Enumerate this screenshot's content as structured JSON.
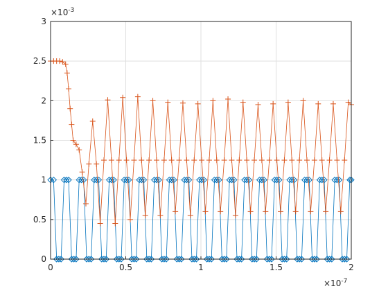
{
  "chart_data": {
    "type": "line",
    "x_multiplier": {
      "base": "×10",
      "exponent": "-7"
    },
    "y_multiplier": {
      "base": "×10",
      "exponent": "-3"
    },
    "xlim": [
      0,
      2
    ],
    "xticks": [
      0,
      0.5,
      1,
      1.5,
      2
    ],
    "ylim": [
      0,
      3
    ],
    "yticks": [
      0,
      0.5,
      1,
      1.5,
      2,
      2.5,
      3
    ],
    "grid": true,
    "series": [
      {
        "color": "#0072BD",
        "marker": "diamond",
        "x": [
          0,
          0.02,
          0.04,
          0.055,
          0.07,
          0.09,
          0.105,
          0.12,
          0.14,
          0.155,
          0.17,
          0.19,
          0.205,
          0.22,
          0.24,
          0.255,
          0.27,
          0.29,
          0.305,
          0.32,
          0.34,
          0.355,
          0.37,
          0.39,
          0.405,
          0.42,
          0.44,
          0.455,
          0.47,
          0.49,
          0.505,
          0.52,
          0.54,
          0.555,
          0.57,
          0.59,
          0.605,
          0.62,
          0.64,
          0.655,
          0.67,
          0.69,
          0.705,
          0.72,
          0.74,
          0.755,
          0.77,
          0.79,
          0.805,
          0.82,
          0.84,
          0.855,
          0.87,
          0.89,
          0.905,
          0.92,
          0.94,
          0.955,
          0.97,
          0.99,
          1.005,
          1.02,
          1.04,
          1.055,
          1.07,
          1.09,
          1.105,
          1.12,
          1.14,
          1.155,
          1.17,
          1.19,
          1.205,
          1.22,
          1.24,
          1.255,
          1.27,
          1.29,
          1.305,
          1.32,
          1.34,
          1.355,
          1.37,
          1.39,
          1.405,
          1.42,
          1.44,
          1.455,
          1.47,
          1.49,
          1.505,
          1.52,
          1.54,
          1.555,
          1.57,
          1.59,
          1.605,
          1.62,
          1.64,
          1.655,
          1.67,
          1.69,
          1.705,
          1.72,
          1.74,
          1.755,
          1.77,
          1.79,
          1.805,
          1.82,
          1.84,
          1.855,
          1.87,
          1.89,
          1.905,
          1.92,
          1.94,
          1.955,
          1.97,
          1.99,
          2.0
        ],
        "values": [
          1,
          1,
          0,
          0,
          0,
          1,
          1,
          1,
          0,
          0,
          0,
          1,
          1,
          1,
          0,
          0,
          0,
          1,
          1,
          1,
          0,
          0,
          0,
          1,
          1,
          1,
          0,
          0,
          0,
          1,
          1,
          1,
          0,
          0,
          0,
          1,
          1,
          1,
          0,
          0,
          0,
          1,
          1,
          1,
          0,
          0,
          0,
          1,
          1,
          1,
          0,
          0,
          0,
          1,
          1,
          1,
          0,
          0,
          0,
          1,
          1,
          1,
          0,
          0,
          0,
          1,
          1,
          1,
          0,
          0,
          0,
          1,
          1,
          1,
          0,
          0,
          0,
          1,
          1,
          1,
          0,
          0,
          0,
          1,
          1,
          1,
          0,
          0,
          0,
          1,
          1,
          1,
          0,
          0,
          0,
          1,
          1,
          1,
          0,
          0,
          0,
          1,
          1,
          1,
          0,
          0,
          0,
          1,
          1,
          1,
          0,
          0,
          0,
          1,
          1,
          1,
          0,
          0,
          0,
          1,
          1
        ]
      },
      {
        "color": "#D95319",
        "marker": "plus",
        "x": [
          0,
          0.02,
          0.04,
          0.06,
          0.08,
          0.1,
          0.11,
          0.12,
          0.13,
          0.14,
          0.15,
          0.17,
          0.19,
          0.21,
          0.235,
          0.255,
          0.28,
          0.305,
          0.33,
          0.355,
          0.38,
          0.405,
          0.43,
          0.455,
          0.48,
          0.505,
          0.53,
          0.555,
          0.58,
          0.605,
          0.63,
          0.655,
          0.68,
          0.705,
          0.73,
          0.755,
          0.78,
          0.805,
          0.83,
          0.855,
          0.88,
          0.905,
          0.93,
          0.955,
          0.98,
          1.005,
          1.03,
          1.055,
          1.08,
          1.105,
          1.13,
          1.155,
          1.18,
          1.205,
          1.23,
          1.255,
          1.28,
          1.305,
          1.33,
          1.355,
          1.38,
          1.405,
          1.43,
          1.455,
          1.48,
          1.505,
          1.53,
          1.555,
          1.58,
          1.605,
          1.63,
          1.655,
          1.68,
          1.705,
          1.73,
          1.755,
          1.78,
          1.805,
          1.83,
          1.855,
          1.88,
          1.905,
          1.93,
          1.955,
          1.98,
          2.0
        ],
        "values": [
          2.5,
          2.5,
          2.5,
          2.5,
          2.49,
          2.46,
          2.35,
          2.15,
          1.9,
          1.7,
          1.5,
          1.45,
          1.38,
          1.1,
          0.7,
          1.2,
          1.74,
          1.2,
          0.45,
          1.25,
          2.01,
          1.25,
          0.45,
          1.25,
          2.04,
          1.25,
          0.5,
          1.25,
          2.05,
          1.25,
          0.55,
          1.25,
          2.0,
          1.25,
          0.55,
          1.25,
          1.98,
          1.25,
          0.6,
          1.25,
          1.97,
          1.25,
          0.55,
          1.25,
          1.96,
          1.25,
          0.6,
          1.25,
          2.0,
          1.25,
          0.6,
          1.25,
          2.02,
          1.25,
          0.55,
          1.25,
          1.98,
          1.25,
          0.6,
          1.25,
          1.95,
          1.25,
          0.6,
          1.25,
          1.96,
          1.25,
          0.6,
          1.25,
          1.98,
          1.25,
          0.6,
          1.25,
          2.0,
          1.25,
          0.6,
          1.25,
          1.96,
          1.25,
          0.6,
          1.25,
          1.96,
          1.25,
          0.6,
          1.25,
          1.98,
          1.95
        ]
      }
    ]
  }
}
